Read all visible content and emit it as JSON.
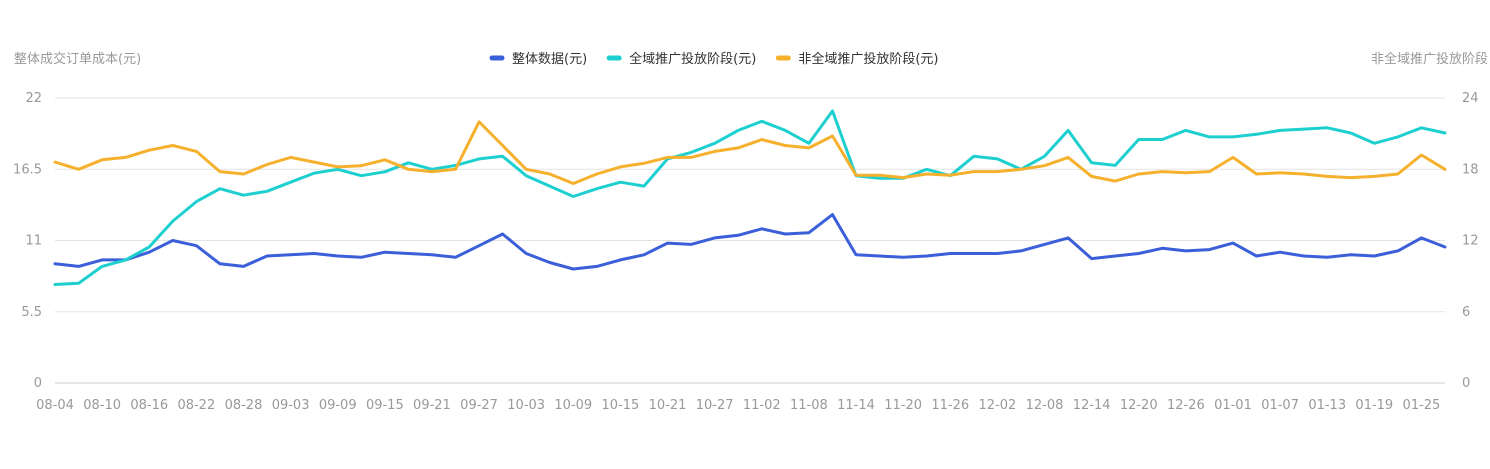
{
  "chart_data": {
    "type": "line",
    "y_label": "整体成交订单成本(元)",
    "y2_label": "非全域推广投放阶段",
    "categories": [
      "08-04",
      null,
      "08-10",
      null,
      "08-16",
      null,
      "08-22",
      null,
      "08-28",
      null,
      "09-03",
      null,
      "09-09",
      null,
      "09-15",
      null,
      "09-21",
      null,
      "09-27",
      null,
      "10-03",
      null,
      "10-09",
      null,
      "10-15",
      null,
      "10-21",
      null,
      "10-27",
      null,
      "11-02",
      null,
      "11-08",
      null,
      "11-14",
      null,
      "11-20",
      null,
      "11-26",
      null,
      "12-02",
      null,
      "12-08",
      null,
      "12-14",
      null,
      "12-20",
      null,
      "12-26",
      null,
      "01-01",
      null,
      "01-07",
      null,
      "01-13",
      null,
      "01-19",
      null,
      "01-25",
      null
    ],
    "series": [
      {
        "name": "整体数据(元)",
        "color": "#3a5fd9",
        "axis": "y",
        "values": [
          9.2,
          9.0,
          9.5,
          9.5,
          10.1,
          11.0,
          10.6,
          9.2,
          9.0,
          9.8,
          9.9,
          10.0,
          9.8,
          9.7,
          10.1,
          10.0,
          9.9,
          9.7,
          10.6,
          11.5,
          10.0,
          9.3,
          8.8,
          9.0,
          9.5,
          9.9,
          10.8,
          10.7,
          11.2,
          11.4,
          11.9,
          11.5,
          11.6,
          13.0,
          9.9,
          9.8,
          9.7,
          9.8,
          10.0,
          10.0,
          10.0,
          10.2,
          10.7,
          11.2,
          9.6,
          9.8,
          10.0,
          10.4,
          10.2,
          10.3,
          10.8,
          9.8,
          10.1,
          9.8,
          9.7,
          9.9,
          9.8,
          10.2,
          11.2,
          10.5
        ]
      },
      {
        "name": "全域推广投放阶段(元)",
        "color": "#1ecfcf",
        "axis": "y",
        "values": [
          7.6,
          7.7,
          9.0,
          9.5,
          10.5,
          12.5,
          14.0,
          15.0,
          14.5,
          14.8,
          15.5,
          16.2,
          16.5,
          16.0,
          16.3,
          17.0,
          16.5,
          16.8,
          17.3,
          17.5,
          16.0,
          15.2,
          14.4,
          15.0,
          15.5,
          15.2,
          17.3,
          17.8,
          18.5,
          19.5,
          20.2,
          19.5,
          18.5,
          21.0,
          16.0,
          15.8,
          15.8,
          16.5,
          16.0,
          17.5,
          17.3,
          16.5,
          17.5,
          19.5,
          17.0,
          16.8,
          18.8,
          18.8,
          19.5,
          19.0,
          19.0,
          19.2,
          19.5,
          19.6,
          19.7,
          19.3,
          18.5,
          19.0,
          19.7,
          19.3
        ]
      },
      {
        "name": "非全域推广投放阶段(元)",
        "color": "#f5b12e",
        "axis": "y2",
        "values": [
          18.6,
          18.0,
          18.8,
          19.0,
          19.6,
          20.0,
          19.5,
          17.8,
          17.6,
          18.4,
          19.0,
          18.6,
          18.2,
          18.3,
          18.8,
          18.0,
          17.8,
          18.0,
          22.0,
          20.0,
          18.0,
          17.6,
          16.8,
          17.6,
          18.2,
          18.5,
          19.0,
          19.0,
          19.5,
          19.8,
          20.5,
          20.0,
          19.8,
          20.8,
          17.5,
          17.5,
          17.3,
          17.6,
          17.5,
          17.8,
          17.8,
          18.0,
          18.3,
          19.0,
          17.4,
          17.0,
          17.6,
          17.8,
          17.7,
          17.8,
          19.0,
          17.6,
          17.7,
          17.6,
          17.4,
          17.3,
          17.4,
          17.6,
          19.2,
          18.0
        ]
      }
    ],
    "ylim": [
      0,
      22
    ],
    "yticks": [
      0,
      5.5,
      11,
      16.5,
      22
    ],
    "y2lim": [
      0,
      24
    ],
    "y2ticks": [
      0,
      6,
      12,
      18,
      24
    ],
    "grid": true
  }
}
